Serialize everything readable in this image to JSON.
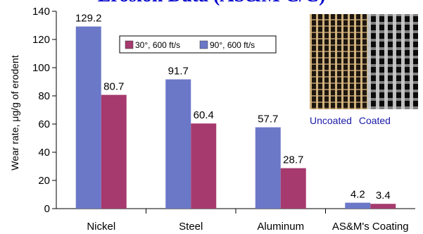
{
  "header": {
    "title": "Erosion Data (AS&M C/C)"
  },
  "chart_data": {
    "type": "bar",
    "categories": [
      "Nickel",
      "Steel",
      "Aluminum",
      "AS&M's Coating"
    ],
    "series": [
      {
        "name": "90°, 600 ft/s",
        "color": "#6b78c8",
        "values": [
          129.2,
          91.7,
          57.7,
          4.2
        ]
      },
      {
        "name": "30°, 600 ft/s",
        "color": "#a63a6e",
        "values": [
          80.7,
          60.4,
          28.7,
          3.4
        ]
      }
    ],
    "value_labels": [
      [
        "129.2",
        "91.7",
        "57.7",
        "4.2"
      ],
      [
        "80.7",
        "60.4",
        "28.7",
        "3.4"
      ]
    ],
    "ylabel": "Wear rate, μg/g of erodent",
    "ylim": [
      0,
      140
    ],
    "yticks": [
      0,
      20,
      40,
      60,
      80,
      100,
      120,
      140
    ],
    "grid": false,
    "legend_position": "top-center",
    "legend_order": [
      1,
      0
    ]
  },
  "photo": {
    "uncoated_caption": "Uncoated",
    "coated_caption": "Coated"
  }
}
